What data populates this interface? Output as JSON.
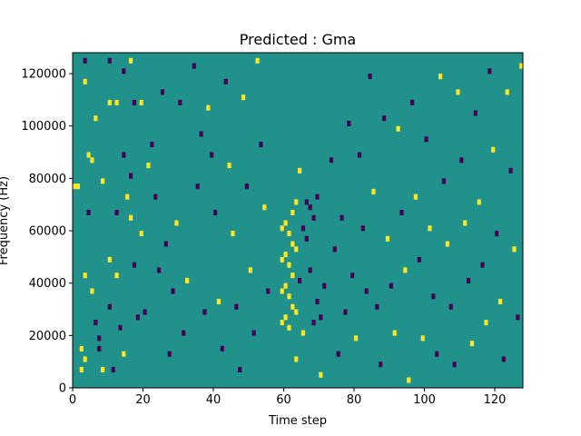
{
  "chart_data": {
    "type": "heatmap",
    "title": "Predicted : Gma",
    "xlabel": "Time step",
    "ylabel": "Frequency (Hz)",
    "xlim": [
      0,
      128
    ],
    "ylim": [
      0,
      128000
    ],
    "x_ticks": [
      0,
      20,
      40,
      60,
      80,
      100,
      120
    ],
    "y_ticks": [
      0,
      20000,
      40000,
      60000,
      80000,
      100000,
      120000
    ],
    "x_tick_labels": [
      "0",
      "20",
      "40",
      "60",
      "80",
      "100",
      "120"
    ],
    "y_tick_labels": [
      "0",
      "20000",
      "40000",
      "60000",
      "80000",
      "100000",
      "120000"
    ],
    "grid": false,
    "colormap": "viridis",
    "colors": {
      "background": "#21918c",
      "high": "#fde725",
      "low": "#440154"
    },
    "n_time_steps": 128,
    "n_freq_bins": 64,
    "bin_hz": 2000,
    "cells": [
      {
        "t": 0,
        "f": 76,
        "c": "high"
      },
      {
        "t": 1,
        "f": 76,
        "c": "high"
      },
      {
        "t": 2,
        "f": 6,
        "c": "high"
      },
      {
        "t": 2,
        "f": 14,
        "c": "high"
      },
      {
        "t": 3,
        "f": 124,
        "c": "low"
      },
      {
        "t": 3,
        "f": 116,
        "c": "high"
      },
      {
        "t": 3,
        "f": 42,
        "c": "high"
      },
      {
        "t": 3,
        "f": 10,
        "c": "high"
      },
      {
        "t": 4,
        "f": 88,
        "c": "high"
      },
      {
        "t": 4,
        "f": 66,
        "c": "low"
      },
      {
        "t": 5,
        "f": 36,
        "c": "high"
      },
      {
        "t": 5,
        "f": 86,
        "c": "high"
      },
      {
        "t": 6,
        "f": 102,
        "c": "high"
      },
      {
        "t": 6,
        "f": 24,
        "c": "low"
      },
      {
        "t": 7,
        "f": 14,
        "c": "low"
      },
      {
        "t": 7,
        "f": 18,
        "c": "low"
      },
      {
        "t": 8,
        "f": 78,
        "c": "high"
      },
      {
        "t": 8,
        "f": 6,
        "c": "high"
      },
      {
        "t": 10,
        "f": 124,
        "c": "low"
      },
      {
        "t": 10,
        "f": 108,
        "c": "high"
      },
      {
        "t": 10,
        "f": 48,
        "c": "high"
      },
      {
        "t": 10,
        "f": 30,
        "c": "low"
      },
      {
        "t": 11,
        "f": 6,
        "c": "low"
      },
      {
        "t": 12,
        "f": 108,
        "c": "high"
      },
      {
        "t": 12,
        "f": 66,
        "c": "low"
      },
      {
        "t": 12,
        "f": 42,
        "c": "high"
      },
      {
        "t": 13,
        "f": 22,
        "c": "low"
      },
      {
        "t": 14,
        "f": 120,
        "c": "low"
      },
      {
        "t": 14,
        "f": 88,
        "c": "low"
      },
      {
        "t": 14,
        "f": 12,
        "c": "high"
      },
      {
        "t": 15,
        "f": 72,
        "c": "high"
      },
      {
        "t": 16,
        "f": 124,
        "c": "high"
      },
      {
        "t": 16,
        "f": 80,
        "c": "low"
      },
      {
        "t": 16,
        "f": 64,
        "c": "high"
      },
      {
        "t": 17,
        "f": 108,
        "c": "low"
      },
      {
        "t": 17,
        "f": 46,
        "c": "low"
      },
      {
        "t": 18,
        "f": 26,
        "c": "low"
      },
      {
        "t": 19,
        "f": 58,
        "c": "high"
      },
      {
        "t": 19,
        "f": 108,
        "c": "high"
      },
      {
        "t": 20,
        "f": 28,
        "c": "low"
      },
      {
        "t": 21,
        "f": 84,
        "c": "high"
      },
      {
        "t": 22,
        "f": 92,
        "c": "low"
      },
      {
        "t": 23,
        "f": 72,
        "c": "low"
      },
      {
        "t": 24,
        "f": 44,
        "c": "low"
      },
      {
        "t": 25,
        "f": 112,
        "c": "low"
      },
      {
        "t": 26,
        "f": 54,
        "c": "low"
      },
      {
        "t": 27,
        "f": 12,
        "c": "low"
      },
      {
        "t": 28,
        "f": 36,
        "c": "low"
      },
      {
        "t": 29,
        "f": 62,
        "c": "high"
      },
      {
        "t": 30,
        "f": 108,
        "c": "low"
      },
      {
        "t": 31,
        "f": 20,
        "c": "low"
      },
      {
        "t": 32,
        "f": 40,
        "c": "high"
      },
      {
        "t": 34,
        "f": 122,
        "c": "low"
      },
      {
        "t": 35,
        "f": 76,
        "c": "low"
      },
      {
        "t": 36,
        "f": 96,
        "c": "low"
      },
      {
        "t": 37,
        "f": 28,
        "c": "low"
      },
      {
        "t": 38,
        "f": 106,
        "c": "high"
      },
      {
        "t": 39,
        "f": 88,
        "c": "low"
      },
      {
        "t": 40,
        "f": 66,
        "c": "low"
      },
      {
        "t": 41,
        "f": 32,
        "c": "high"
      },
      {
        "t": 42,
        "f": 14,
        "c": "low"
      },
      {
        "t": 43,
        "f": 116,
        "c": "low"
      },
      {
        "t": 44,
        "f": 84,
        "c": "high"
      },
      {
        "t": 45,
        "f": 58,
        "c": "high"
      },
      {
        "t": 46,
        "f": 30,
        "c": "low"
      },
      {
        "t": 47,
        "f": 6,
        "c": "low"
      },
      {
        "t": 48,
        "f": 110,
        "c": "high"
      },
      {
        "t": 49,
        "f": 76,
        "c": "low"
      },
      {
        "t": 50,
        "f": 44,
        "c": "high"
      },
      {
        "t": 51,
        "f": 20,
        "c": "low"
      },
      {
        "t": 52,
        "f": 124,
        "c": "high"
      },
      {
        "t": 53,
        "f": 92,
        "c": "low"
      },
      {
        "t": 54,
        "f": 68,
        "c": "high"
      },
      {
        "t": 55,
        "f": 36,
        "c": "low"
      },
      {
        "t": 59,
        "f": 60,
        "c": "high"
      },
      {
        "t": 59,
        "f": 48,
        "c": "high"
      },
      {
        "t": 59,
        "f": 36,
        "c": "high"
      },
      {
        "t": 59,
        "f": 24,
        "c": "high"
      },
      {
        "t": 60,
        "f": 62,
        "c": "high"
      },
      {
        "t": 60,
        "f": 50,
        "c": "high"
      },
      {
        "t": 60,
        "f": 38,
        "c": "high"
      },
      {
        "t": 60,
        "f": 26,
        "c": "high"
      },
      {
        "t": 61,
        "f": 58,
        "c": "high"
      },
      {
        "t": 61,
        "f": 46,
        "c": "high"
      },
      {
        "t": 61,
        "f": 34,
        "c": "high"
      },
      {
        "t": 61,
        "f": 22,
        "c": "high"
      },
      {
        "t": 62,
        "f": 66,
        "c": "high"
      },
      {
        "t": 62,
        "f": 54,
        "c": "high"
      },
      {
        "t": 62,
        "f": 42,
        "c": "high"
      },
      {
        "t": 62,
        "f": 30,
        "c": "high"
      },
      {
        "t": 63,
        "f": 70,
        "c": "high"
      },
      {
        "t": 63,
        "f": 52,
        "c": "high"
      },
      {
        "t": 63,
        "f": 28,
        "c": "high"
      },
      {
        "t": 63,
        "f": 10,
        "c": "high"
      },
      {
        "t": 64,
        "f": 82,
        "c": "high"
      },
      {
        "t": 64,
        "f": 40,
        "c": "low"
      },
      {
        "t": 65,
        "f": 60,
        "c": "low"
      },
      {
        "t": 65,
        "f": 20,
        "c": "high"
      },
      {
        "t": 66,
        "f": 70,
        "c": "low"
      },
      {
        "t": 66,
        "f": 56,
        "c": "low"
      },
      {
        "t": 67,
        "f": 68,
        "c": "low"
      },
      {
        "t": 67,
        "f": 44,
        "c": "low"
      },
      {
        "t": 68,
        "f": 64,
        "c": "low"
      },
      {
        "t": 68,
        "f": 24,
        "c": "low"
      },
      {
        "t": 69,
        "f": 72,
        "c": "low"
      },
      {
        "t": 69,
        "f": 32,
        "c": "low"
      },
      {
        "t": 70,
        "f": 26,
        "c": "low"
      },
      {
        "t": 70,
        "f": 4,
        "c": "high"
      },
      {
        "t": 71,
        "f": 38,
        "c": "low"
      },
      {
        "t": 73,
        "f": 86,
        "c": "low"
      },
      {
        "t": 74,
        "f": 52,
        "c": "low"
      },
      {
        "t": 75,
        "f": 12,
        "c": "low"
      },
      {
        "t": 76,
        "f": 64,
        "c": "low"
      },
      {
        "t": 77,
        "f": 28,
        "c": "low"
      },
      {
        "t": 78,
        "f": 100,
        "c": "low"
      },
      {
        "t": 79,
        "f": 42,
        "c": "low"
      },
      {
        "t": 80,
        "f": 18,
        "c": "high"
      },
      {
        "t": 81,
        "f": 88,
        "c": "low"
      },
      {
        "t": 82,
        "f": 60,
        "c": "low"
      },
      {
        "t": 83,
        "f": 36,
        "c": "low"
      },
      {
        "t": 84,
        "f": 118,
        "c": "low"
      },
      {
        "t": 85,
        "f": 74,
        "c": "high"
      },
      {
        "t": 86,
        "f": 30,
        "c": "low"
      },
      {
        "t": 87,
        "f": 8,
        "c": "low"
      },
      {
        "t": 88,
        "f": 102,
        "c": "low"
      },
      {
        "t": 89,
        "f": 56,
        "c": "high"
      },
      {
        "t": 90,
        "f": 38,
        "c": "low"
      },
      {
        "t": 91,
        "f": 20,
        "c": "high"
      },
      {
        "t": 92,
        "f": 98,
        "c": "high"
      },
      {
        "t": 93,
        "f": 66,
        "c": "low"
      },
      {
        "t": 94,
        "f": 44,
        "c": "high"
      },
      {
        "t": 95,
        "f": 2,
        "c": "high"
      },
      {
        "t": 96,
        "f": 108,
        "c": "low"
      },
      {
        "t": 97,
        "f": 72,
        "c": "high"
      },
      {
        "t": 98,
        "f": 48,
        "c": "low"
      },
      {
        "t": 99,
        "f": 18,
        "c": "high"
      },
      {
        "t": 100,
        "f": 94,
        "c": "low"
      },
      {
        "t": 101,
        "f": 60,
        "c": "high"
      },
      {
        "t": 102,
        "f": 34,
        "c": "low"
      },
      {
        "t": 103,
        "f": 12,
        "c": "low"
      },
      {
        "t": 104,
        "f": 118,
        "c": "high"
      },
      {
        "t": 105,
        "f": 78,
        "c": "low"
      },
      {
        "t": 106,
        "f": 54,
        "c": "high"
      },
      {
        "t": 107,
        "f": 30,
        "c": "low"
      },
      {
        "t": 108,
        "f": 8,
        "c": "low"
      },
      {
        "t": 109,
        "f": 112,
        "c": "high"
      },
      {
        "t": 110,
        "f": 86,
        "c": "low"
      },
      {
        "t": 111,
        "f": 62,
        "c": "high"
      },
      {
        "t": 112,
        "f": 40,
        "c": "low"
      },
      {
        "t": 113,
        "f": 16,
        "c": "high"
      },
      {
        "t": 114,
        "f": 104,
        "c": "low"
      },
      {
        "t": 115,
        "f": 70,
        "c": "high"
      },
      {
        "t": 116,
        "f": 46,
        "c": "low"
      },
      {
        "t": 117,
        "f": 24,
        "c": "high"
      },
      {
        "t": 118,
        "f": 120,
        "c": "low"
      },
      {
        "t": 119,
        "f": 90,
        "c": "high"
      },
      {
        "t": 120,
        "f": 58,
        "c": "low"
      },
      {
        "t": 121,
        "f": 32,
        "c": "high"
      },
      {
        "t": 122,
        "f": 10,
        "c": "low"
      },
      {
        "t": 123,
        "f": 112,
        "c": "high"
      },
      {
        "t": 124,
        "f": 82,
        "c": "low"
      },
      {
        "t": 125,
        "f": 52,
        "c": "high"
      },
      {
        "t": 126,
        "f": 26,
        "c": "low"
      },
      {
        "t": 127,
        "f": 122,
        "c": "high"
      }
    ]
  }
}
